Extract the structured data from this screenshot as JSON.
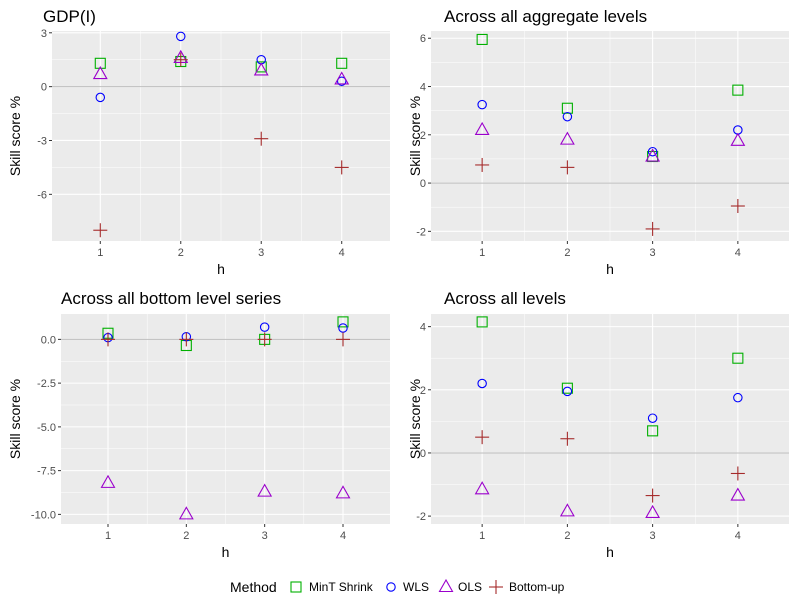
{
  "chart_data": [
    {
      "type": "scatter",
      "title": "GDP(I)",
      "xlabel": "h",
      "ylabel": "Skill score %",
      "x": [
        1,
        2,
        3,
        4
      ],
      "xlim": [
        0.4,
        4.6
      ],
      "ylim": [
        -8.6,
        3.1
      ],
      "yticks": [
        3,
        0,
        -3,
        -6
      ],
      "ytick_labels": [
        "3",
        "0",
        "-3",
        "-6"
      ],
      "series": [
        {
          "name": "MinT Shrink",
          "values": [
            1.3,
            1.4,
            1.1,
            1.3
          ]
        },
        {
          "name": "WLS",
          "values": [
            -0.6,
            2.8,
            1.5,
            0.3
          ]
        },
        {
          "name": "OLS",
          "values": [
            0.7,
            1.6,
            0.9,
            0.4
          ]
        },
        {
          "name": "Bottom-up",
          "values": [
            -8.0,
            1.5,
            -2.9,
            -4.5
          ]
        }
      ]
    },
    {
      "type": "scatter",
      "title": "Across all aggregate levels",
      "xlabel": "h",
      "ylabel": "Skill score %",
      "x": [
        1,
        2,
        3,
        4
      ],
      "xlim": [
        0.4,
        4.6
      ],
      "ylim": [
        -2.4,
        6.3
      ],
      "yticks": [
        6,
        4,
        2,
        0,
        -2
      ],
      "ytick_labels": [
        "6",
        "4",
        "2",
        "0",
        "-2"
      ],
      "series": [
        {
          "name": "MinT Shrink",
          "values": [
            5.95,
            3.1,
            1.1,
            3.85
          ]
        },
        {
          "name": "WLS",
          "values": [
            3.25,
            2.75,
            1.3,
            2.2
          ]
        },
        {
          "name": "OLS",
          "values": [
            2.2,
            1.8,
            1.1,
            1.75
          ]
        },
        {
          "name": "Bottom-up",
          "values": [
            0.75,
            0.65,
            -1.9,
            -0.95
          ]
        }
      ]
    },
    {
      "type": "scatter",
      "title": "Across all bottom level series",
      "xlabel": "h",
      "ylabel": "Skill score %",
      "x": [
        1,
        2,
        3,
        4
      ],
      "xlim": [
        0.4,
        4.6
      ],
      "ylim": [
        -10.55,
        1.45
      ],
      "yticks": [
        0,
        -2.5,
        -5,
        -7.5,
        -10
      ],
      "ytick_labels": [
        "0.0",
        "-2.5",
        "-5.0",
        "-7.5",
        "-10.0"
      ],
      "series": [
        {
          "name": "MinT Shrink",
          "values": [
            0.35,
            -0.35,
            0.0,
            1.0
          ]
        },
        {
          "name": "WLS",
          "values": [
            0.1,
            0.15,
            0.7,
            0.65
          ]
        },
        {
          "name": "OLS",
          "values": [
            -8.2,
            -10.0,
            -8.7,
            -8.8
          ]
        },
        {
          "name": "Bottom-up",
          "values": [
            0.0,
            0.0,
            0.0,
            0.0
          ]
        }
      ]
    },
    {
      "type": "scatter",
      "title": "Across all levels",
      "xlabel": "h",
      "ylabel": "Skill score %",
      "x": [
        1,
        2,
        3,
        4
      ],
      "xlim": [
        0.4,
        4.6
      ],
      "ylim": [
        -2.25,
        4.4
      ],
      "yticks": [
        4,
        2,
        0,
        -2
      ],
      "ytick_labels": [
        "4",
        "2",
        "0",
        "-2"
      ],
      "series": [
        {
          "name": "MinT Shrink",
          "values": [
            4.15,
            2.05,
            0.7,
            3.0
          ]
        },
        {
          "name": "WLS",
          "values": [
            2.2,
            1.95,
            1.1,
            1.75
          ]
        },
        {
          "name": "OLS",
          "values": [
            -1.15,
            -1.85,
            -1.9,
            -1.35
          ]
        },
        {
          "name": "Bottom-up",
          "values": [
            0.5,
            0.45,
            -1.35,
            -0.65
          ]
        }
      ]
    }
  ],
  "legend": {
    "title": "Method",
    "placement": "bottom",
    "items": [
      {
        "name": "MinT Shrink",
        "shape": "square",
        "color": "#00b000"
      },
      {
        "name": "WLS",
        "shape": "circle",
        "color": "#0000ff"
      },
      {
        "name": "OLS",
        "shape": "triangle",
        "color": "#9b00cc"
      },
      {
        "name": "Bottom-up",
        "shape": "plus",
        "color": "#a52a2a"
      }
    ]
  },
  "style": {
    "panel_background": "#ebebeb",
    "grid_color": "#ffffff",
    "zero_line_color": "#bdbdbd"
  }
}
